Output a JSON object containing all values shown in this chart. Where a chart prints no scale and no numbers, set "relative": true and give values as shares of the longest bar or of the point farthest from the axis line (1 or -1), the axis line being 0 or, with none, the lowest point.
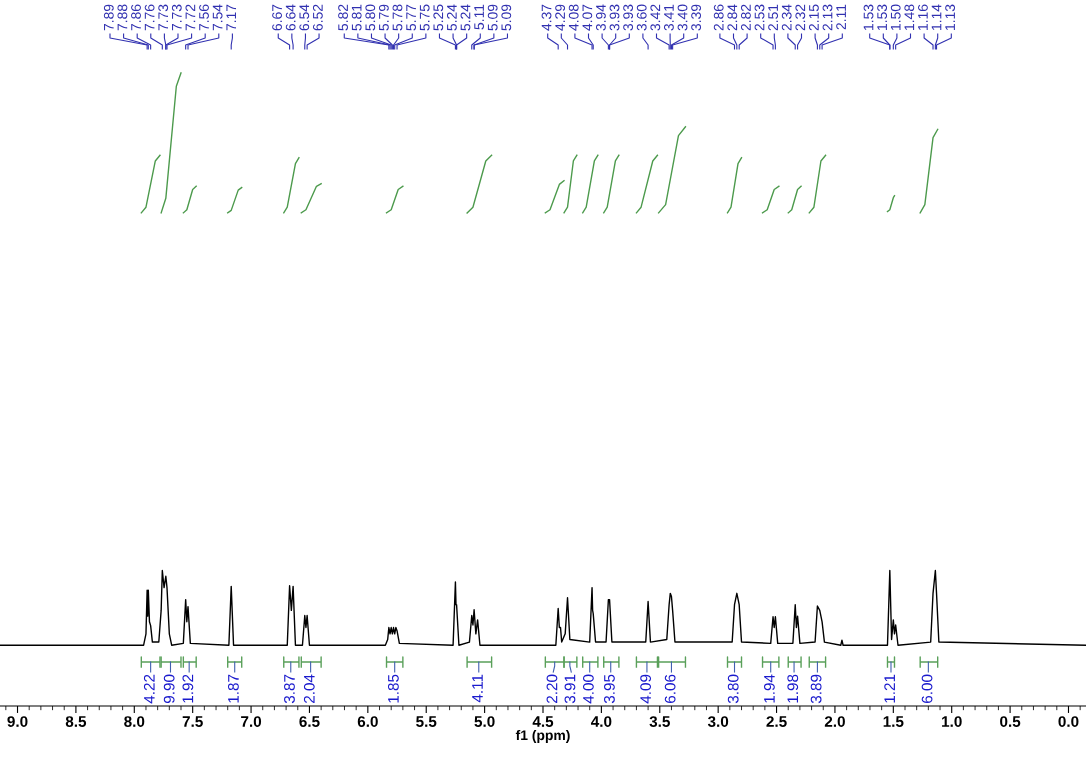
{
  "chart_data": {
    "type": "line",
    "relative": true,
    "xlabel": "f1 (ppm)",
    "xlim": [
      9.15,
      -0.15
    ],
    "xticks": [
      {
        "value": 9,
        "label": "9.0"
      },
      {
        "value": 8.5,
        "label": "8.5"
      },
      {
        "value": 8,
        "label": "8.0"
      },
      {
        "value": 7.5,
        "label": "7.5"
      },
      {
        "value": 7,
        "label": "7.0"
      },
      {
        "value": 6.5,
        "label": "6.5"
      },
      {
        "value": 6,
        "label": "6.0"
      },
      {
        "value": 5.5,
        "label": "5.5"
      },
      {
        "value": 5,
        "label": "5.0"
      },
      {
        "value": 4.5,
        "label": "4.5"
      },
      {
        "value": 4,
        "label": "4.0"
      },
      {
        "value": 3.5,
        "label": "3.5"
      },
      {
        "value": 3,
        "label": "3.0"
      },
      {
        "value": 2.5,
        "label": "2.5"
      },
      {
        "value": 2,
        "label": "2.0"
      },
      {
        "value": 1.5,
        "label": "1.5"
      },
      {
        "value": 1,
        "label": "1.0"
      },
      {
        "value": 0.5,
        "label": "0.5"
      },
      {
        "value": 0,
        "label": "0.0"
      }
    ],
    "tick_labels": "x",
    "series": [
      {
        "color": "#000000",
        "x": [
          9.15,
          7.92,
          7.9,
          7.89,
          7.885,
          7.88,
          7.87,
          7.86,
          7.845,
          7.79,
          7.77,
          7.76,
          7.745,
          7.73,
          7.725,
          7.72,
          7.7,
          7.68,
          7.58,
          7.56,
          7.55,
          7.54,
          7.52,
          7.19,
          7.17,
          7.15,
          6.69,
          6.67,
          6.655,
          6.64,
          6.62,
          6.56,
          6.54,
          6.53,
          6.52,
          6.5,
          5.85,
          5.83,
          5.82,
          5.81,
          5.8,
          5.79,
          5.78,
          5.77,
          5.76,
          5.75,
          5.73,
          5.27,
          5.25,
          5.245,
          5.24,
          5.22,
          5.13,
          5.11,
          5.1,
          5.09,
          5.075,
          5.06,
          5.04,
          4.39,
          4.37,
          4.36,
          4.35,
          4.34,
          4.31,
          4.29,
          4.27,
          4.1,
          4.08,
          4.075,
          4.07,
          4.05,
          3.96,
          3.94,
          3.93,
          3.91,
          3.62,
          3.6,
          3.58,
          3.44,
          3.42,
          3.41,
          3.4,
          3.39,
          3.37,
          2.88,
          2.86,
          2.84,
          2.82,
          2.8,
          2.55,
          2.53,
          2.52,
          2.51,
          2.49,
          2.36,
          2.34,
          2.33,
          2.32,
          2.3,
          2.17,
          2.15,
          2.13,
          2.11,
          2.09,
          1.95,
          1.94,
          1.93,
          1.55,
          1.53,
          1.515,
          1.5,
          1.49,
          1.48,
          1.46,
          1.18,
          1.16,
          1.14,
          1.13,
          1.11,
          -0.15
        ],
        "values": [
          0.096,
          0.096,
          0.114,
          0.183,
          0.142,
          0.183,
          0.133,
          0.127,
          0.101,
          0.101,
          0.151,
          0.214,
          0.187,
          0.205,
          0.196,
          0.187,
          0.114,
          0.096,
          0.099,
          0.168,
          0.133,
          0.157,
          0.099,
          0.096,
          0.189,
          0.096,
          0.096,
          0.19,
          0.151,
          0.189,
          0.096,
          0.096,
          0.143,
          0.124,
          0.143,
          0.096,
          0.096,
          0.105,
          0.124,
          0.114,
          0.124,
          0.114,
          0.124,
          0.114,
          0.124,
          0.119,
          0.099,
          0.096,
          0.196,
          0.16,
          0.16,
          0.096,
          0.101,
          0.143,
          0.128,
          0.152,
          0.114,
          0.136,
          0.096,
          0.096,
          0.154,
          0.124,
          0.124,
          0.101,
          0.114,
          0.171,
          0.105,
          0.101,
          0.187,
          0.151,
          0.146,
          0.101,
          0.101,
          0.168,
          0.168,
          0.101,
          0.101,
          0.165,
          0.101,
          0.105,
          0.16,
          0.178,
          0.173,
          0.151,
          0.101,
          0.101,
          0.16,
          0.178,
          0.16,
          0.101,
          0.099,
          0.141,
          0.124,
          0.141,
          0.099,
          0.099,
          0.16,
          0.124,
          0.142,
          0.099,
          0.101,
          0.158,
          0.151,
          0.133,
          0.101,
          0.096,
          0.104,
          0.096,
          0.096,
          0.214,
          0.105,
          0.136,
          0.114,
          0.128,
          0.096,
          0.101,
          0.178,
          0.214,
          0.178,
          0.101,
          0.096
        ]
      },
      {
        "color": "#4c9a4c",
        "x": [
          7.94,
          7.9,
          7.82,
          7.78
        ],
        "values": [
          0.779,
          0.788,
          0.861,
          0.87
        ]
      },
      {
        "color": "#4c9a4c",
        "x": [
          7.77,
          7.73,
          7.64,
          7.6
        ],
        "values": [
          0.779,
          0.802,
          0.979,
          1.0
        ]
      },
      {
        "color": "#4c9a4c",
        "x": [
          7.58,
          7.55,
          7.5,
          7.47
        ],
        "values": [
          0.779,
          0.784,
          0.816,
          0.821
        ]
      },
      {
        "color": "#4c9a4c",
        "x": [
          7.2,
          7.17,
          7.11,
          7.08
        ],
        "values": [
          0.779,
          0.783,
          0.815,
          0.819
        ]
      },
      {
        "color": "#4c9a4c",
        "x": [
          6.72,
          6.69,
          6.62,
          6.59
        ],
        "values": [
          0.779,
          0.788,
          0.857,
          0.866
        ]
      },
      {
        "color": "#4c9a4c",
        "x": [
          6.57,
          6.53,
          6.44,
          6.4
        ],
        "values": [
          0.779,
          0.784,
          0.821,
          0.825
        ]
      },
      {
        "color": "#4c9a4c",
        "x": [
          5.84,
          5.8,
          5.74,
          5.7
        ],
        "values": [
          0.779,
          0.784,
          0.816,
          0.821
        ]
      },
      {
        "color": "#4c9a4c",
        "x": [
          5.15,
          5.1,
          4.99,
          4.94
        ],
        "values": [
          0.779,
          0.788,
          0.861,
          0.87
        ]
      },
      {
        "color": "#4c9a4c",
        "x": [
          4.48,
          4.44,
          4.36,
          4.32
        ],
        "values": [
          0.779,
          0.784,
          0.824,
          0.83
        ]
      },
      {
        "color": "#4c9a4c",
        "x": [
          4.32,
          4.29,
          4.24,
          4.21
        ],
        "values": [
          0.779,
          0.788,
          0.861,
          0.87
        ]
      },
      {
        "color": "#4c9a4c",
        "x": [
          4.16,
          4.13,
          4.06,
          4.03
        ],
        "values": [
          0.779,
          0.788,
          0.861,
          0.87
        ]
      },
      {
        "color": "#4c9a4c",
        "x": [
          3.98,
          3.95,
          3.88,
          3.85
        ],
        "values": [
          0.779,
          0.788,
          0.861,
          0.87
        ]
      },
      {
        "color": "#4c9a4c",
        "x": [
          3.7,
          3.66,
          3.56,
          3.52
        ],
        "values": [
          0.779,
          0.788,
          0.861,
          0.87
        ]
      },
      {
        "color": "#4c9a4c",
        "x": [
          3.51,
          3.45,
          3.34,
          3.28
        ],
        "values": [
          0.779,
          0.792,
          0.901,
          0.915
        ]
      },
      {
        "color": "#4c9a4c",
        "x": [
          2.92,
          2.89,
          2.83,
          2.8
        ],
        "values": [
          0.779,
          0.788,
          0.857,
          0.866
        ]
      },
      {
        "color": "#4c9a4c",
        "x": [
          2.62,
          2.58,
          2.52,
          2.48
        ],
        "values": [
          0.779,
          0.784,
          0.816,
          0.821
        ]
      },
      {
        "color": "#4c9a4c",
        "x": [
          2.4,
          2.37,
          2.32,
          2.29
        ],
        "values": [
          0.779,
          0.784,
          0.816,
          0.821
        ]
      },
      {
        "color": "#4c9a4c",
        "x": [
          2.22,
          2.18,
          2.12,
          2.08
        ],
        "values": [
          0.779,
          0.788,
          0.861,
          0.87
        ]
      },
      {
        "color": "#4c9a4c",
        "x": [
          1.55,
          1.53,
          1.5,
          1.49
        ],
        "values": [
          0.781,
          0.784,
          0.803,
          0.806
        ]
      },
      {
        "color": "#4c9a4c",
        "x": [
          1.27,
          1.23,
          1.16,
          1.12
        ],
        "values": [
          0.779,
          0.792,
          0.898,
          0.911
        ]
      }
    ],
    "annotations": [
      {
        "text": "7.89",
        "x": 7.89
      },
      {
        "text": "7.88",
        "x": 7.88
      },
      {
        "text": "7.86",
        "x": 7.86
      },
      {
        "text": "7.76",
        "x": 7.76
      },
      {
        "text": "7.73",
        "x": 7.73
      },
      {
        "text": "7.73",
        "x": 7.73
      },
      {
        "text": "7.72",
        "x": 7.72
      },
      {
        "text": "7.56",
        "x": 7.56
      },
      {
        "text": "7.54",
        "x": 7.54
      },
      {
        "text": "7.17",
        "x": 7.17
      },
      {
        "text": "6.67",
        "x": 6.67
      },
      {
        "text": "6.64",
        "x": 6.64
      },
      {
        "text": "6.54",
        "x": 6.54
      },
      {
        "text": "6.52",
        "x": 6.52
      },
      {
        "text": "5.82",
        "x": 5.82
      },
      {
        "text": "5.81",
        "x": 5.81
      },
      {
        "text": "5.80",
        "x": 5.8
      },
      {
        "text": "5.79",
        "x": 5.79
      },
      {
        "text": "5.78",
        "x": 5.78
      },
      {
        "text": "5.77",
        "x": 5.77
      },
      {
        "text": "5.75",
        "x": 5.75
      },
      {
        "text": "5.25",
        "x": 5.25
      },
      {
        "text": "5.24",
        "x": 5.24
      },
      {
        "text": "5.24",
        "x": 5.24
      },
      {
        "text": "5.11",
        "x": 5.11
      },
      {
        "text": "5.09",
        "x": 5.09
      },
      {
        "text": "5.09",
        "x": 5.09
      },
      {
        "text": "4.37",
        "x": 4.37
      },
      {
        "text": "4.29",
        "x": 4.29
      },
      {
        "text": "4.08",
        "x": 4.08
      },
      {
        "text": "4.07",
        "x": 4.07
      },
      {
        "text": "3.94",
        "x": 3.94
      },
      {
        "text": "3.93",
        "x": 3.93
      },
      {
        "text": "3.93",
        "x": 3.93
      },
      {
        "text": "3.60",
        "x": 3.6
      },
      {
        "text": "3.42",
        "x": 3.42
      },
      {
        "text": "3.41",
        "x": 3.41
      },
      {
        "text": "3.40",
        "x": 3.4
      },
      {
        "text": "3.39",
        "x": 3.39
      },
      {
        "text": "2.86",
        "x": 2.86
      },
      {
        "text": "2.84",
        "x": 2.84
      },
      {
        "text": "2.82",
        "x": 2.82
      },
      {
        "text": "2.53",
        "x": 2.53
      },
      {
        "text": "2.51",
        "x": 2.51
      },
      {
        "text": "2.34",
        "x": 2.34
      },
      {
        "text": "2.32",
        "x": 2.32
      },
      {
        "text": "2.15",
        "x": 2.15
      },
      {
        "text": "2.13",
        "x": 2.13
      },
      {
        "text": "2.11",
        "x": 2.11
      },
      {
        "text": "1.53",
        "x": 1.53
      },
      {
        "text": "1.53",
        "x": 1.53
      },
      {
        "text": "1.50",
        "x": 1.5
      },
      {
        "text": "1.48",
        "x": 1.48
      },
      {
        "text": "1.16",
        "x": 1.16
      },
      {
        "text": "1.14",
        "x": 1.14
      },
      {
        "text": "1.13",
        "x": 1.13
      },
      {
        "text": "4.22",
        "x": 7.86
      },
      {
        "text": "9.90",
        "x": 7.69
      },
      {
        "text": "1.92",
        "x": 7.53
      },
      {
        "text": "1.87",
        "x": 7.14
      },
      {
        "text": "3.87",
        "x": 6.66
      },
      {
        "text": "2.04",
        "x": 6.49
      },
      {
        "text": "1.85",
        "x": 5.77
      },
      {
        "text": "4.11",
        "x": 5.05
      },
      {
        "text": "2.20",
        "x": 4.4
      },
      {
        "text": "3.91",
        "x": 4.27
      },
      {
        "text": "4.00",
        "x": 4.1
      },
      {
        "text": "3.95",
        "x": 3.92
      },
      {
        "text": "4.09",
        "x": 3.61
      },
      {
        "text": "6.06",
        "x": 3.4
      },
      {
        "text": "3.80",
        "x": 2.86
      },
      {
        "text": "1.94",
        "x": 2.55
      },
      {
        "text": "1.98",
        "x": 2.35
      },
      {
        "text": "3.89",
        "x": 2.15
      },
      {
        "text": "1.21",
        "x": 1.52
      },
      {
        "text": "6.00",
        "x": 1.2
      }
    ]
  }
}
